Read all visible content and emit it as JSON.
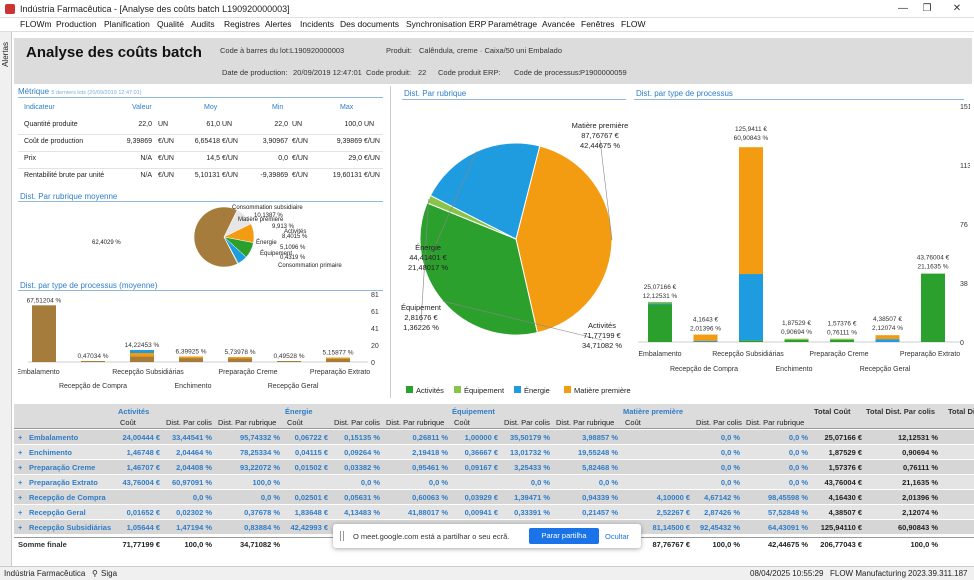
{
  "window": {
    "title": "Indústria Farmacêutica - [Analyse des coûts  batch L190920000003]"
  },
  "menu": [
    "FLOWm",
    "Production",
    "Planification",
    "Qualité",
    "Audits",
    "Registres",
    "Alertes",
    "Incidents",
    "Des documents",
    "Synchronisation ERP",
    "Paramétrage",
    "Avancée",
    "Fenêtres",
    "FLOW"
  ],
  "sidebar": {
    "label": "Alertas"
  },
  "header": {
    "title": "Analyse des coûts   batch",
    "barcode_label": "Code à barres du lot:",
    "barcode_value": "L190920000003",
    "product_label": "Produit:",
    "product_value": "Calêndula, creme · Caixa/50 uni Embalado",
    "date_label": "Date de production:",
    "date_value": "20/09/2019 12:47:01",
    "code_label": "Code produit:",
    "code_value": "22",
    "erp_label": "Code produit ERP:",
    "process_label": "Code de processus:",
    "process_value": "P1900000059"
  },
  "metrics": {
    "title": "Métrique",
    "subtitle": "5 derniers lots (20/09/2019 12:47:01)",
    "columns": [
      "Indicateur",
      "Valeur",
      "Moy",
      "Min",
      "Max"
    ],
    "rows": [
      {
        "name": "Quantité produite",
        "val": "22,0",
        "u1": "UN",
        "moy": "61,0",
        "u2": "UN",
        "min": "22,0",
        "u3": "UN",
        "max": "100,0",
        "u4": "UN"
      },
      {
        "name": "Coût de production",
        "val": "9,39869",
        "u1": "€/UN",
        "moy": "6,65418",
        "u2": "€/UN",
        "min": "3,90967",
        "u3": "€/UN",
        "max": "9,39869",
        "u4": "€/UN"
      },
      {
        "name": "Prix",
        "val": "N/A",
        "u1": "€/UN",
        "moy": "14,5",
        "u2": "€/UN",
        "min": "0,0",
        "u3": "€/UN",
        "max": "29,0",
        "u4": "€/UN"
      },
      {
        "name": "Rentabilité brute par unité",
        "val": "N/A",
        "u1": "€/UN",
        "moy": "5,10131",
        "u2": "€/UN",
        "min": "-9,39869",
        "u3": "€/UN",
        "max": "19,60131",
        "u4": "€/UN"
      }
    ]
  },
  "small_pie": {
    "title": "Dist. Par rubrique moyenne",
    "labels": [
      "Consommation subsidiaire",
      "10,1387 %",
      "Matière première",
      "9,913 %",
      "Activités",
      "8,4015 %",
      "Énergie",
      "5,1096 %",
      "Équipement",
      "0,4319 %",
      "Consommation primaire",
      "62,4029 %"
    ]
  },
  "process_avg": {
    "title": "Dist. par type de processus (moyenne)",
    "bar_labels": [
      "67,51204 %",
      "0,47034 %",
      "14,22453 %",
      "6,39925 %",
      "5,73978 %",
      "0,49528 %",
      "5,15877 %"
    ],
    "cats_top": [
      "Embalamento",
      "Recepção Subsidiárias",
      "Preparação Creme",
      "Preparação Extrato"
    ],
    "cats_bottom": [
      "Recepção de Compra",
      "Enchimento",
      "Recepção Geral"
    ],
    "yticks": [
      "81",
      "61",
      "41",
      "20",
      "0"
    ]
  },
  "big_pie": {
    "title": "Dist. Par rubrique",
    "slices": [
      {
        "name": "Matière première",
        "value": "87,76767 €",
        "pct": "42,44675 %",
        "color": "#f39c12"
      },
      {
        "name": "Activités",
        "value": "71,77199 €",
        "pct": "34,71082 %",
        "color": "#2ca02c"
      },
      {
        "name": "Équipement",
        "value": "2,81676 €",
        "pct": "1,36226 %",
        "color": "#8bc34a"
      },
      {
        "name": "Énergie",
        "value": "44,41401 €",
        "pct": "21,48017 %",
        "color": "#1f9be0"
      }
    ],
    "legend": [
      "Activités",
      "Équipement",
      "Énergie",
      "Matière première"
    ]
  },
  "process_dist": {
    "title": "Dist. par type de processus",
    "yticks": [
      "151",
      "113",
      "76",
      "38",
      "0"
    ],
    "bars": [
      {
        "value": "25,07166 €",
        "pct": "12,12531 %"
      },
      {
        "value": "4,1643 €",
        "pct": "2,01396 %"
      },
      {
        "value": "125,9411 €",
        "pct": "60,90843 %"
      },
      {
        "value": "1,87529 €",
        "pct": "0,90694 %"
      },
      {
        "value": "1,57376 €",
        "pct": "0,76111 %"
      },
      {
        "value": "4,38507 €",
        "pct": "2,12074 %"
      },
      {
        "value": "43,76004 €",
        "pct": "21,1635 %"
      }
    ],
    "cats_top": [
      "Embalamento",
      "Recepção Subsidiárias",
      "Preparação Creme",
      "Preparação Extrato"
    ],
    "cats_bottom": [
      "Recepção de Compra",
      "Enchimento",
      "Recepção Geral"
    ]
  },
  "grid": {
    "groups": [
      "Activités",
      "Énergie",
      "Équipement",
      "Matière première",
      "Total Coût",
      "Total Dist. Par colis",
      "Total Di"
    ],
    "subcols": [
      "Coût",
      "Dist. Par colis",
      "Dist. Par rubrique",
      "Coût",
      "Dist. Par colis",
      "Dist. Par rubrique",
      "Coût",
      "Dist. Par colis",
      "Dist. Par rubrique",
      "Coût",
      "Dist. Par colis",
      "Dist. Par rubrique"
    ],
    "rows": [
      {
        "name": "Embalamento",
        "c": [
          "24,00444 €",
          "33,44541 %",
          "95,74332 %",
          "0,06722 €",
          "0,15135 %",
          "0,26811 %",
          "1,00000 €",
          "35,50179 %",
          "3,98857 %",
          "",
          "0,0 %",
          "0,0 %",
          "25,07166 €",
          "12,12531 %"
        ]
      },
      {
        "name": "Enchimento",
        "c": [
          "1,46748 €",
          "2,04464 %",
          "78,25334 %",
          "0,04115 €",
          "0,09264 %",
          "2,19418 %",
          "0,36667 €",
          "13,01732 %",
          "19,55248 %",
          "",
          "0,0 %",
          "0,0 %",
          "1,87529 €",
          "0,90694 %"
        ]
      },
      {
        "name": "Preparação Creme",
        "c": [
          "1,46707 €",
          "2,04408 %",
          "93,22072 %",
          "0,01502 €",
          "0,03382 %",
          "0,95461 %",
          "0,09167 €",
          "3,25433 %",
          "5,82468 %",
          "",
          "0,0 %",
          "0,0 %",
          "1,57376 €",
          "0,76111 %"
        ]
      },
      {
        "name": "Preparação Extrato",
        "c": [
          "43,76004 €",
          "60,97091 %",
          "100,0 %",
          "",
          "0,0 %",
          "0,0 %",
          "",
          "0,0 %",
          "0,0 %",
          "",
          "0,0 %",
          "0,0 %",
          "43,76004 €",
          "21,1635 %"
        ]
      },
      {
        "name": "Recepção de Compra",
        "c": [
          "",
          "0,0 %",
          "0,0 %",
          "0,02501 €",
          "0,05631 %",
          "0,60063 %",
          "0,03929 €",
          "1,39471 %",
          "0,94339 %",
          "4,10000 €",
          "4,67142 %",
          "98,45598 %",
          "4,16430 €",
          "2,01396 %"
        ]
      },
      {
        "name": "Recepção Geral",
        "c": [
          "0,01652 €",
          "0,02302 %",
          "0,37678 %",
          "1,83648 €",
          "4,13483 %",
          "41,88017 %",
          "0,00941 €",
          "0,33391 %",
          "0,21457 %",
          "2,52267 €",
          "2,87426 %",
          "57,52848 %",
          "4,38507 €",
          "2,12074 %"
        ]
      },
      {
        "name": "Recepção Subsidiárias",
        "c": [
          "1,05644 €",
          "1,47194 %",
          "0,83884 %",
          "42,42993 €",
          "",
          "",
          "",
          "",
          "",
          "81,14500 €",
          "92,45432 %",
          "64,43091 %",
          "125,94110 €",
          "60,90843 %"
        ]
      }
    ],
    "sum": {
      "name": "Somme finale",
      "c": [
        "71,77199 €",
        "100,0 %",
        "34,71082 %",
        "",
        "",
        "",
        "",
        "",
        "",
        "87,76767 €",
        "100,0 %",
        "42,44675 %",
        "206,77043 €",
        "100,0 %"
      ]
    }
  },
  "share_bar": {
    "message": "O meet.google.com está a partilhar o seu ecrã.",
    "stop": "Parar partilha",
    "hide": "Ocultar"
  },
  "status": {
    "company": "Indústria Farmacêutica",
    "user": "Siga",
    "datetime": "08/04/2025 10:55:29",
    "app": "FLOW Manufacturing",
    "version": "2023.39.311.187"
  }
}
